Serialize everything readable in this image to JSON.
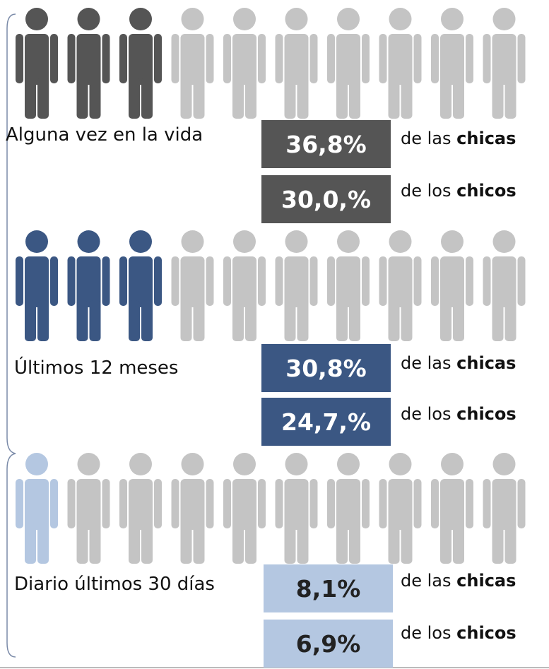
{
  "sections": [
    {
      "label": "Alguna vez en la vida",
      "color": "#555555",
      "text_color": "#ffffff",
      "icons_total": 10,
      "icons_highlighted": 3,
      "rows": [
        {
          "value": "36,8%",
          "prefix": "de las",
          "group": "chicas"
        },
        {
          "value": "30,0,%",
          "prefix": "de los",
          "group": "chicos"
        }
      ]
    },
    {
      "label": "Últimos 12 meses",
      "color": "#3b5783",
      "text_color": "#ffffff",
      "icons_total": 10,
      "icons_highlighted": 3,
      "rows": [
        {
          "value": "30,8%",
          "prefix": "de las",
          "group": "chicas"
        },
        {
          "value": "24,7,%",
          "prefix": "de los",
          "group": "chicos"
        }
      ]
    },
    {
      "label": "Diario últimos 30 días",
      "color": "#b4c7e1",
      "text_color": "#222222",
      "icons_total": 10,
      "icons_highlighted": 1,
      "rows": [
        {
          "value": "8,1%",
          "prefix": "de las",
          "group": "chicas"
        },
        {
          "value": "6,9%",
          "prefix": "de los",
          "group": "chicos"
        }
      ]
    }
  ]
}
